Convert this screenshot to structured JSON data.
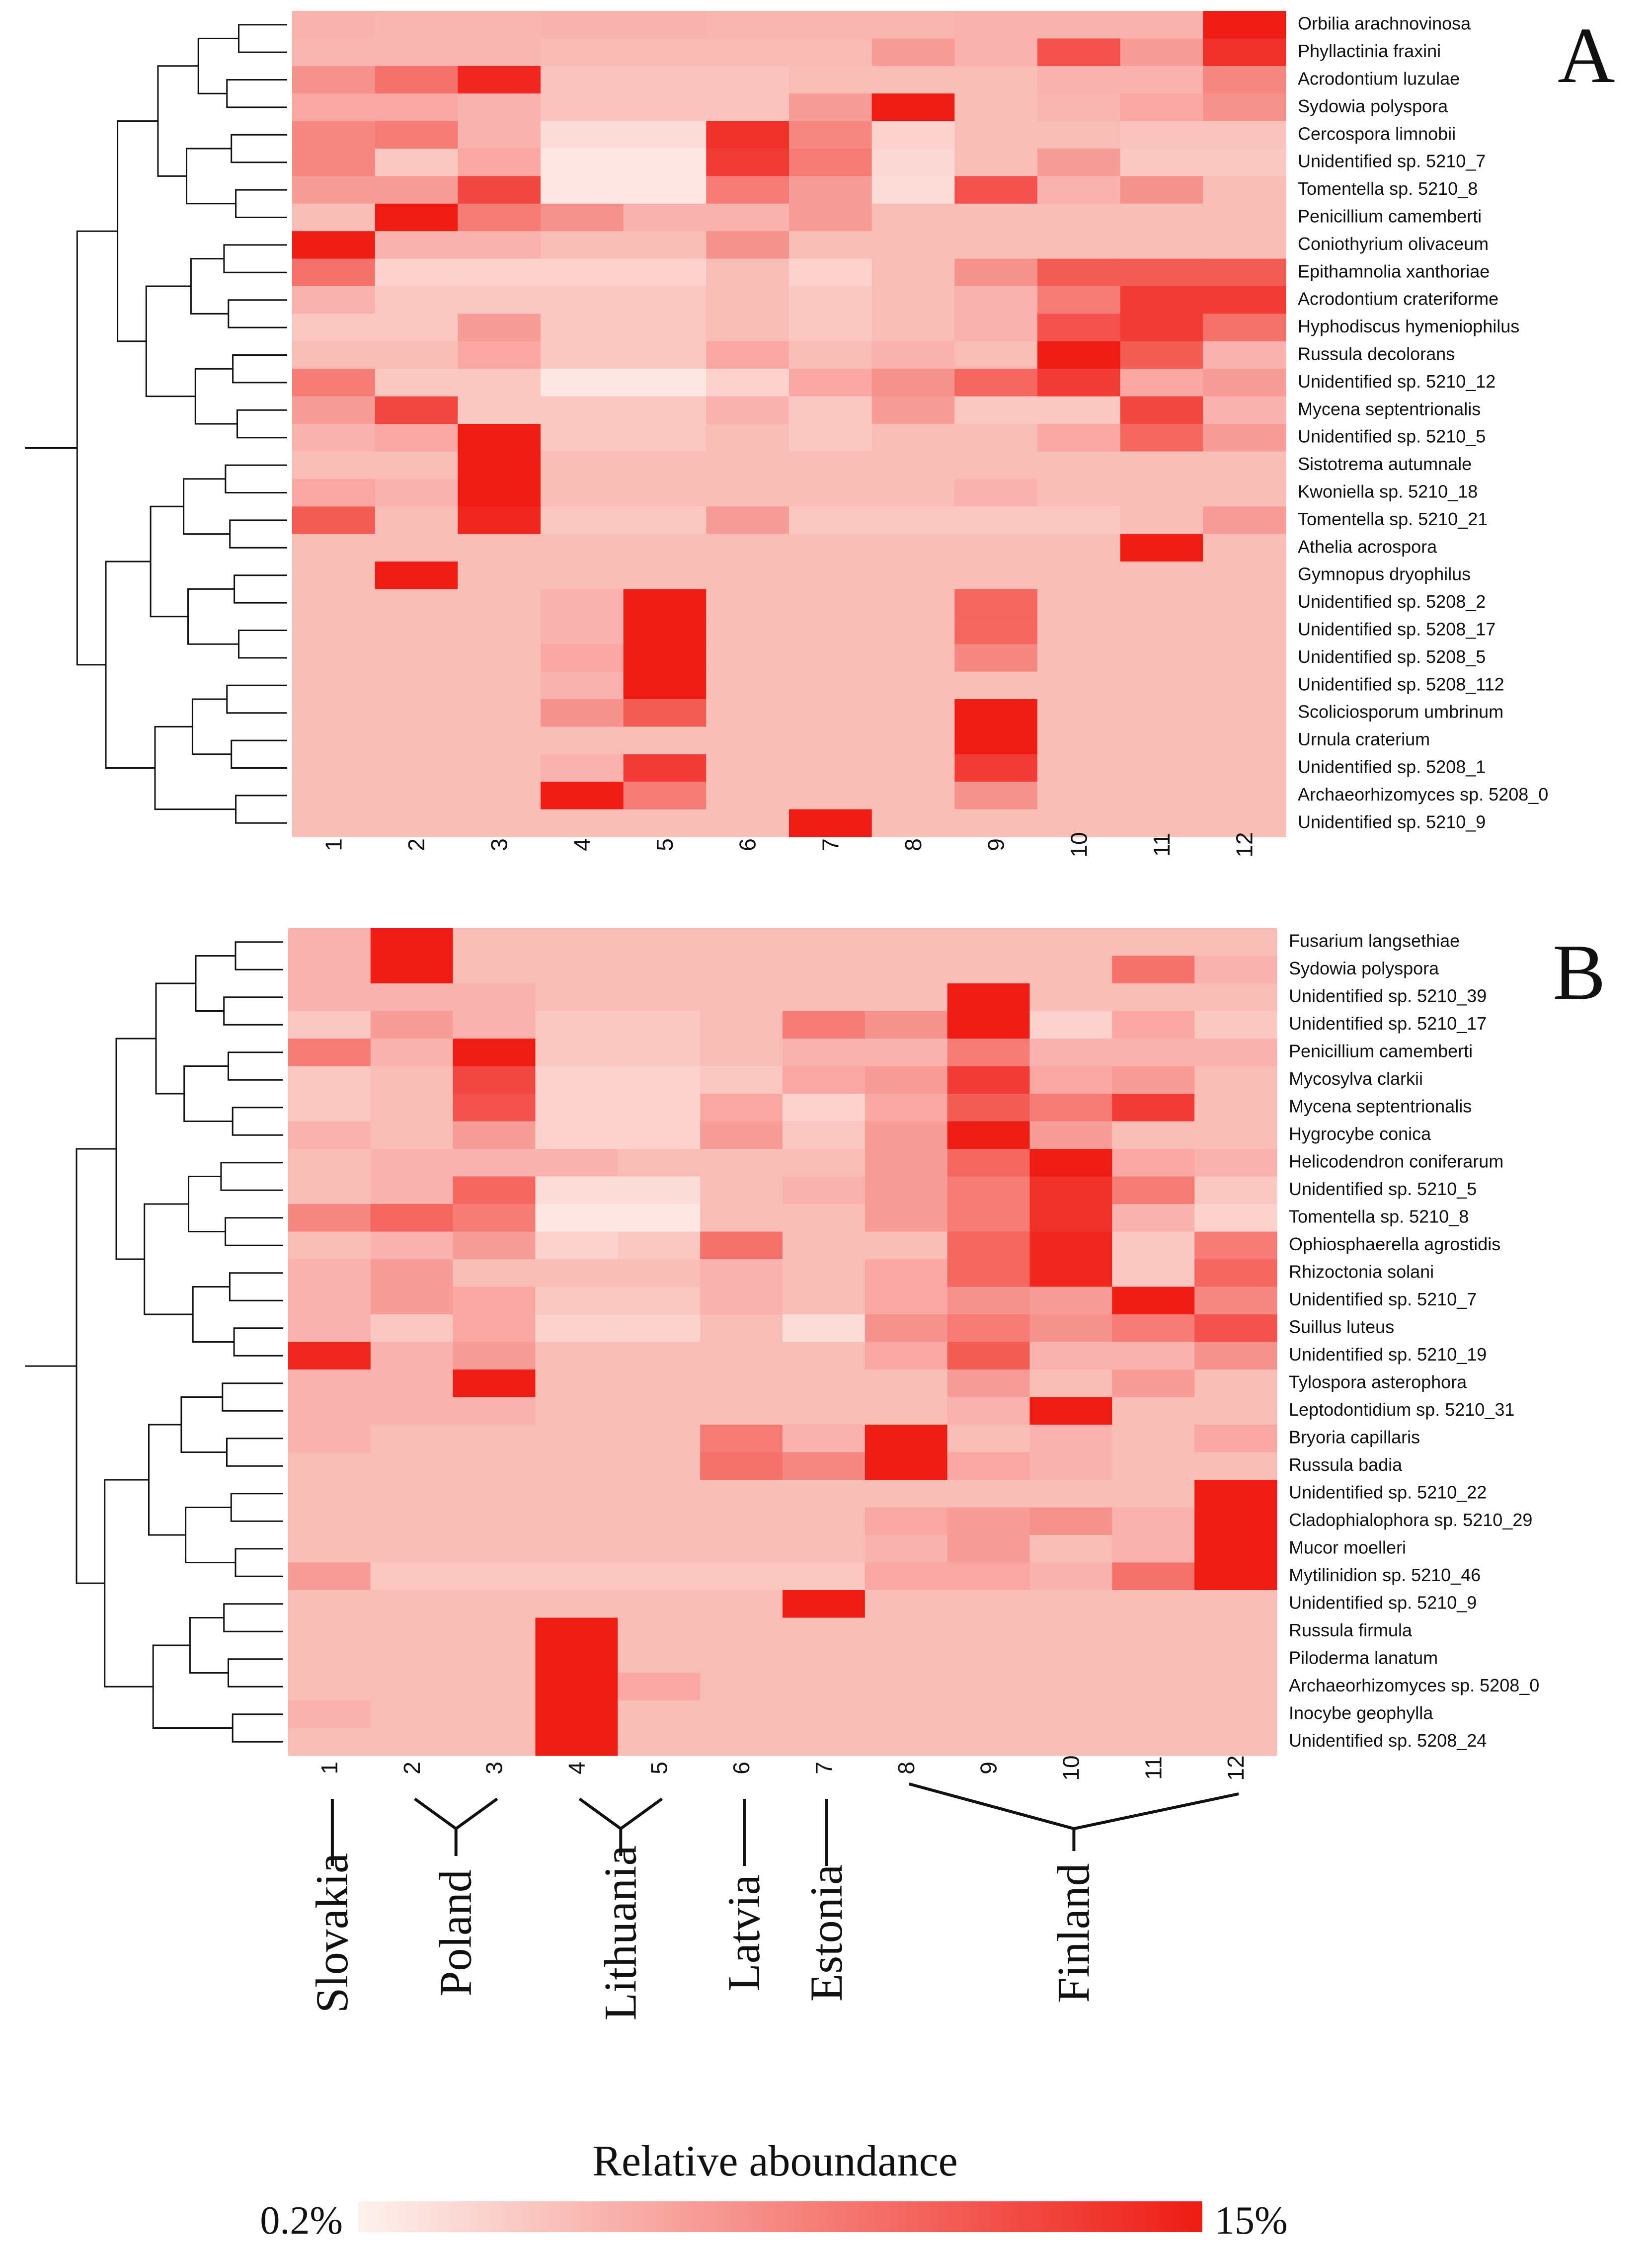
{
  "chart_data": [
    {
      "type": "heatmap",
      "panel_label": "A",
      "xlabels": [
        "1",
        "2",
        "3",
        "4",
        "5",
        "6",
        "7",
        "8",
        "9",
        "10",
        "11",
        "12"
      ],
      "rows": [
        "Orbilia arachnovinosa",
        "Phyllactinia fraxini",
        "Acrodontium luzulae",
        "Sydowia polyspora",
        "Cercospora limnobii",
        "Unidentified sp. 5210_7",
        "Tomentella sp. 5210_8",
        "Penicillium camemberti",
        "Coniothyrium olivaceum",
        "Epithamnolia xanthoriae",
        "Acrodontium crateriforme",
        "Hyphodiscus hymeniophilus",
        "Russula decolorans",
        "Unidentified sp. 5210_12",
        "Mycena septentrionalis",
        "Unidentified sp. 5210_5",
        "Sistotrema autumnale",
        "Kwoniella sp. 5210_18",
        "Tomentella sp. 5210_21",
        "Athelia acrospora",
        "Gymnopus dryophilus",
        "Unidentified  sp.  5208_2",
        "Unidentified  sp.  5208_17",
        "Unidentified  sp.  5208_5",
        "Unidentified  sp.  5208_112",
        "Scoliciosporum umbrinum",
        "Urnula craterium",
        "Unidentified  sp.  5208_1",
        "Archaeorhizomyces  sp.  5208_0",
        "Unidentified sp. 5210_9"
      ],
      "values": [
        [
          0.3,
          0.28,
          0.28,
          0.3,
          0.3,
          0.28,
          0.28,
          0.28,
          0.3,
          0.3,
          0.3,
          1.0
        ],
        [
          0.28,
          0.28,
          0.28,
          0.26,
          0.26,
          0.26,
          0.26,
          0.4,
          0.3,
          0.75,
          0.4,
          0.9
        ],
        [
          0.45,
          0.6,
          0.95,
          0.22,
          0.22,
          0.22,
          0.25,
          0.25,
          0.25,
          0.3,
          0.3,
          0.5
        ],
        [
          0.35,
          0.35,
          0.3,
          0.22,
          0.22,
          0.22,
          0.4,
          1.0,
          0.25,
          0.28,
          0.35,
          0.45
        ],
        [
          0.5,
          0.55,
          0.3,
          0.1,
          0.1,
          0.9,
          0.5,
          0.15,
          0.25,
          0.25,
          0.22,
          0.22
        ],
        [
          0.5,
          0.2,
          0.35,
          0.05,
          0.05,
          0.85,
          0.55,
          0.12,
          0.25,
          0.4,
          0.2,
          0.2
        ],
        [
          0.4,
          0.4,
          0.8,
          0.05,
          0.05,
          0.55,
          0.4,
          0.1,
          0.75,
          0.3,
          0.45,
          0.25
        ],
        [
          0.25,
          1.0,
          0.55,
          0.45,
          0.3,
          0.3,
          0.4,
          0.25,
          0.25,
          0.25,
          0.25,
          0.25
        ],
        [
          1.0,
          0.3,
          0.3,
          0.25,
          0.25,
          0.45,
          0.25,
          0.25,
          0.25,
          0.25,
          0.25,
          0.25
        ],
        [
          0.6,
          0.15,
          0.15,
          0.15,
          0.15,
          0.25,
          0.15,
          0.25,
          0.45,
          0.7,
          0.7,
          0.7
        ],
        [
          0.3,
          0.2,
          0.2,
          0.2,
          0.2,
          0.25,
          0.2,
          0.25,
          0.3,
          0.55,
          0.85,
          0.85
        ],
        [
          0.2,
          0.2,
          0.4,
          0.2,
          0.2,
          0.25,
          0.2,
          0.25,
          0.3,
          0.75,
          0.85,
          0.6
        ],
        [
          0.25,
          0.25,
          0.35,
          0.2,
          0.2,
          0.35,
          0.25,
          0.3,
          0.25,
          1.0,
          0.7,
          0.3
        ],
        [
          0.55,
          0.2,
          0.2,
          0.05,
          0.05,
          0.15,
          0.35,
          0.45,
          0.65,
          0.85,
          0.35,
          0.4
        ],
        [
          0.4,
          0.8,
          0.2,
          0.2,
          0.2,
          0.3,
          0.2,
          0.4,
          0.2,
          0.2,
          0.8,
          0.3
        ],
        [
          0.3,
          0.35,
          1.0,
          0.2,
          0.2,
          0.25,
          0.2,
          0.25,
          0.25,
          0.35,
          0.65,
          0.4
        ],
        [
          0.25,
          0.25,
          1.0,
          0.25,
          0.25,
          0.25,
          0.25,
          0.25,
          0.25,
          0.25,
          0.25,
          0.25
        ],
        [
          0.35,
          0.3,
          1.0,
          0.25,
          0.25,
          0.25,
          0.25,
          0.25,
          0.3,
          0.25,
          0.25,
          0.25
        ],
        [
          0.7,
          0.25,
          0.95,
          0.2,
          0.2,
          0.4,
          0.2,
          0.2,
          0.2,
          0.2,
          0.25,
          0.4
        ],
        [
          0.25,
          0.25,
          0.25,
          0.25,
          0.25,
          0.25,
          0.25,
          0.25,
          0.25,
          0.25,
          1.0,
          0.25
        ],
        [
          0.25,
          1.0,
          0.25,
          0.25,
          0.25,
          0.25,
          0.25,
          0.25,
          0.25,
          0.25,
          0.25,
          0.25
        ],
        [
          0.25,
          0.25,
          0.25,
          0.3,
          1.0,
          0.25,
          0.25,
          0.25,
          0.65,
          0.25,
          0.25,
          0.25
        ],
        [
          0.25,
          0.25,
          0.25,
          0.3,
          1.0,
          0.25,
          0.25,
          0.25,
          0.65,
          0.25,
          0.25,
          0.25
        ],
        [
          0.25,
          0.25,
          0.25,
          0.35,
          1.0,
          0.25,
          0.25,
          0.25,
          0.5,
          0.25,
          0.25,
          0.25
        ],
        [
          0.25,
          0.25,
          0.25,
          0.3,
          1.0,
          0.25,
          0.25,
          0.25,
          0.25,
          0.25,
          0.25,
          0.25
        ],
        [
          0.25,
          0.25,
          0.25,
          0.45,
          0.7,
          0.25,
          0.25,
          0.25,
          1.0,
          0.25,
          0.25,
          0.25
        ],
        [
          0.25,
          0.25,
          0.25,
          0.25,
          0.25,
          0.25,
          0.25,
          0.25,
          1.0,
          0.25,
          0.25,
          0.25
        ],
        [
          0.25,
          0.25,
          0.25,
          0.3,
          0.85,
          0.25,
          0.25,
          0.25,
          0.85,
          0.25,
          0.25,
          0.25
        ],
        [
          0.25,
          0.25,
          0.25,
          1.0,
          0.55,
          0.25,
          0.25,
          0.25,
          0.45,
          0.25,
          0.25,
          0.25
        ],
        [
          0.25,
          0.25,
          0.25,
          0.25,
          0.25,
          0.25,
          1.0,
          0.25,
          0.25,
          0.25,
          0.25,
          0.25
        ]
      ]
    },
    {
      "type": "heatmap",
      "panel_label": "B",
      "xlabels": [
        "1",
        "2",
        "3",
        "4",
        "5",
        "6",
        "7",
        "8",
        "9",
        "10",
        "11",
        "12"
      ],
      "rows": [
        "Fusarium langsethiae",
        "Sydowia polyspora",
        "Unidentified sp. 5210_39",
        "Unidentified sp. 5210_17",
        "Penicillium camemberti",
        "Mycosylva clarkii",
        "Mycena septentrionalis",
        "Hygrocybe conica",
        "Helicodendron coniferarum",
        "Unidentified sp. 5210_5",
        "Tomentella sp. 5210_8",
        "Ophiosphaerella agrostidis",
        "Rhizoctonia solani",
        "Unidentified sp. 5210_7",
        "Suillus luteus",
        "Unidentified sp. 5210_19",
        "Tylospora asterophora",
        "Leptodontidium sp. 5210_31",
        "Bryoria capillaris",
        "Russula badia",
        "Unidentified sp. 5210_22",
        "Cladophialophora sp. 5210_29",
        "Mucor moelleri",
        "Mytilinidion sp. 5210_46",
        "Unidentified sp. 5210_9",
        "Russula firmula",
        "Piloderma lanatum",
        "Archaeorhizomyces sp. 5208_0",
        "Inocybe geophylla",
        "Unidentified sp. 5208_24"
      ],
      "values": [
        [
          0.3,
          1.0,
          0.25,
          0.25,
          0.25,
          0.25,
          0.25,
          0.25,
          0.25,
          0.25,
          0.25,
          0.25
        ],
        [
          0.3,
          1.0,
          0.25,
          0.25,
          0.25,
          0.25,
          0.25,
          0.25,
          0.25,
          0.25,
          0.6,
          0.3
        ],
        [
          0.3,
          0.3,
          0.3,
          0.25,
          0.25,
          0.25,
          0.25,
          0.25,
          1.0,
          0.25,
          0.25,
          0.25
        ],
        [
          0.2,
          0.4,
          0.3,
          0.2,
          0.2,
          0.25,
          0.55,
          0.45,
          1.0,
          0.15,
          0.35,
          0.2
        ],
        [
          0.55,
          0.3,
          1.0,
          0.2,
          0.2,
          0.25,
          0.3,
          0.3,
          0.55,
          0.3,
          0.3,
          0.3
        ],
        [
          0.2,
          0.25,
          0.8,
          0.15,
          0.15,
          0.2,
          0.35,
          0.4,
          0.85,
          0.35,
          0.4,
          0.25
        ],
        [
          0.2,
          0.25,
          0.75,
          0.15,
          0.15,
          0.35,
          0.15,
          0.35,
          0.7,
          0.55,
          0.85,
          0.25
        ],
        [
          0.3,
          0.25,
          0.4,
          0.15,
          0.15,
          0.4,
          0.2,
          0.4,
          1.0,
          0.4,
          0.25,
          0.25
        ],
        [
          0.25,
          0.3,
          0.3,
          0.3,
          0.25,
          0.25,
          0.25,
          0.4,
          0.65,
          1.0,
          0.35,
          0.3
        ],
        [
          0.25,
          0.3,
          0.65,
          0.1,
          0.1,
          0.25,
          0.3,
          0.4,
          0.55,
          0.9,
          0.55,
          0.2
        ],
        [
          0.5,
          0.65,
          0.55,
          0.05,
          0.05,
          0.25,
          0.25,
          0.4,
          0.55,
          0.9,
          0.3,
          0.15
        ],
        [
          0.25,
          0.3,
          0.4,
          0.15,
          0.2,
          0.6,
          0.25,
          0.25,
          0.65,
          0.95,
          0.2,
          0.55
        ],
        [
          0.3,
          0.4,
          0.25,
          0.25,
          0.25,
          0.3,
          0.25,
          0.35,
          0.65,
          0.95,
          0.2,
          0.65
        ],
        [
          0.3,
          0.4,
          0.35,
          0.2,
          0.2,
          0.3,
          0.25,
          0.35,
          0.45,
          0.4,
          1.0,
          0.5
        ],
        [
          0.3,
          0.2,
          0.35,
          0.15,
          0.15,
          0.25,
          0.1,
          0.45,
          0.55,
          0.45,
          0.55,
          0.75
        ],
        [
          0.95,
          0.3,
          0.4,
          0.25,
          0.25,
          0.25,
          0.25,
          0.35,
          0.7,
          0.3,
          0.3,
          0.45
        ],
        [
          0.3,
          0.3,
          1.0,
          0.25,
          0.25,
          0.25,
          0.25,
          0.25,
          0.4,
          0.25,
          0.4,
          0.25
        ],
        [
          0.3,
          0.3,
          0.3,
          0.25,
          0.25,
          0.25,
          0.25,
          0.25,
          0.3,
          1.0,
          0.25,
          0.25
        ],
        [
          0.3,
          0.25,
          0.25,
          0.25,
          0.25,
          0.55,
          0.3,
          1.0,
          0.25,
          0.3,
          0.25,
          0.35
        ],
        [
          0.25,
          0.25,
          0.25,
          0.25,
          0.25,
          0.6,
          0.5,
          1.0,
          0.35,
          0.3,
          0.25,
          0.25
        ],
        [
          0.25,
          0.25,
          0.25,
          0.25,
          0.25,
          0.25,
          0.25,
          0.25,
          0.25,
          0.25,
          0.25,
          1.0
        ],
        [
          0.25,
          0.25,
          0.25,
          0.25,
          0.25,
          0.25,
          0.25,
          0.35,
          0.4,
          0.45,
          0.3,
          1.0
        ],
        [
          0.25,
          0.25,
          0.25,
          0.25,
          0.25,
          0.25,
          0.25,
          0.3,
          0.4,
          0.25,
          0.3,
          1.0
        ],
        [
          0.4,
          0.2,
          0.2,
          0.2,
          0.2,
          0.2,
          0.2,
          0.35,
          0.35,
          0.3,
          0.6,
          1.0
        ],
        [
          0.25,
          0.25,
          0.25,
          0.25,
          0.25,
          0.25,
          1.0,
          0.25,
          0.25,
          0.25,
          0.25,
          0.25
        ],
        [
          0.25,
          0.25,
          0.25,
          1.0,
          0.25,
          0.25,
          0.25,
          0.25,
          0.25,
          0.25,
          0.25,
          0.25
        ],
        [
          0.25,
          0.25,
          0.25,
          1.0,
          0.25,
          0.25,
          0.25,
          0.25,
          0.25,
          0.25,
          0.25,
          0.25
        ],
        [
          0.25,
          0.25,
          0.25,
          1.0,
          0.35,
          0.25,
          0.25,
          0.25,
          0.25,
          0.25,
          0.25,
          0.25
        ],
        [
          0.3,
          0.25,
          0.25,
          1.0,
          0.25,
          0.25,
          0.25,
          0.25,
          0.25,
          0.25,
          0.25,
          0.25
        ],
        [
          0.25,
          0.25,
          0.25,
          1.0,
          0.25,
          0.25,
          0.25,
          0.25,
          0.25,
          0.25,
          0.25,
          0.25
        ]
      ]
    }
  ],
  "countries": [
    {
      "name": "Slovakia",
      "sites": [
        "1"
      ]
    },
    {
      "name": "Poland",
      "sites": [
        "2",
        "3"
      ]
    },
    {
      "name": "Lithuania",
      "sites": [
        "4",
        "5"
      ]
    },
    {
      "name": "Latvia",
      "sites": [
        "6"
      ]
    },
    {
      "name": "Estonia",
      "sites": [
        "7"
      ]
    },
    {
      "name": "Finland",
      "sites": [
        "8",
        "9",
        "10",
        "11",
        "12"
      ]
    }
  ],
  "legend": {
    "title": "Relative aboundance",
    "min_label": "0.2%",
    "max_label": "15%",
    "color_low": "#fdf2ee",
    "color_high": "#ee1c14"
  }
}
